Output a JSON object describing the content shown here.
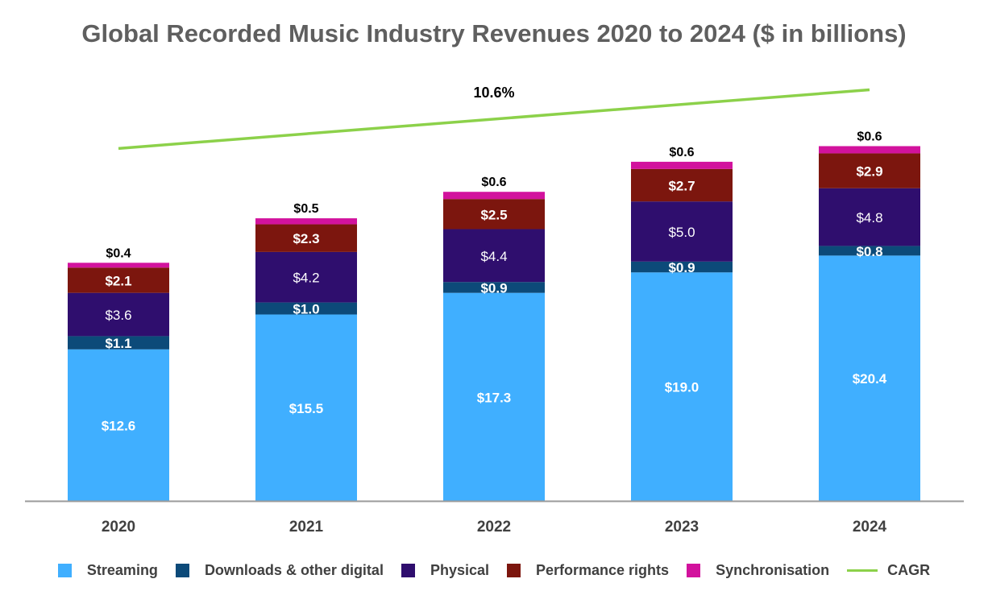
{
  "chart_data": {
    "type": "bar",
    "stacked": true,
    "title": "Global Recorded Music Industry Revenues 2020 to 2024 ($ in billions)",
    "categories": [
      "2020",
      "2021",
      "2022",
      "2023",
      "2024"
    ],
    "series": [
      {
        "name": "Streaming",
        "color": "#40AFFF",
        "values": [
          12.6,
          15.5,
          17.3,
          19.0,
          20.4
        ],
        "labels": [
          "$12.6",
          "$15.5",
          "$17.3",
          "$19.0",
          "$20.4"
        ]
      },
      {
        "name": "Downloads & other digital",
        "color": "#0C4A79",
        "values": [
          1.1,
          1.0,
          0.9,
          0.9,
          0.8
        ],
        "labels": [
          "$1.1",
          "$1.0",
          "$0.9",
          "$0.9",
          "$0.8"
        ]
      },
      {
        "name": "Physical",
        "color": "#2F0E6E",
        "values": [
          3.6,
          4.2,
          4.4,
          5.0,
          4.8
        ],
        "labels": [
          "$3.6",
          "$4.2",
          "$4.4",
          "$5.0",
          "$4.8"
        ]
      },
      {
        "name": "Performance rights",
        "color": "#7C160E",
        "values": [
          2.1,
          2.3,
          2.5,
          2.7,
          2.9
        ],
        "labels": [
          "$2.1",
          "$2.3",
          "$2.5",
          "$2.7",
          "$2.9"
        ]
      },
      {
        "name": "Synchronisation",
        "color": "#D2129D",
        "values": [
          0.4,
          0.5,
          0.6,
          0.6,
          0.6
        ],
        "labels": [
          "$0.4",
          "$0.5",
          "$0.6",
          "$0.6",
          "$0.6"
        ]
      }
    ],
    "cagr": {
      "name": "CAGR",
      "label": "10.6%",
      "color": "#8CD14A"
    },
    "ylim": [
      0,
      29.8
    ],
    "xlabel": "",
    "ylabel": "",
    "grid": false,
    "legend": "bottom"
  }
}
